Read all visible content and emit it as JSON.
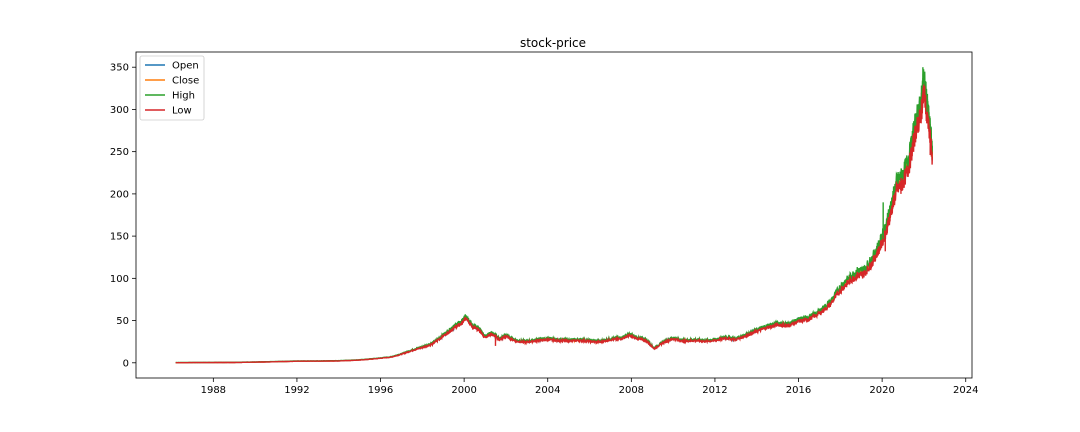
{
  "chart_data": {
    "type": "line",
    "title": "stock-price",
    "xlabel": "",
    "ylabel": "",
    "xlim": [
      1984.3,
      2024.3
    ],
    "ylim": [
      -18,
      368
    ],
    "x_ticks": [
      1988,
      1992,
      1996,
      2000,
      2004,
      2008,
      2012,
      2016,
      2020,
      2024
    ],
    "y_ticks": [
      0,
      50,
      100,
      150,
      200,
      250,
      300,
      350
    ],
    "grid": false,
    "legend_position": "top-left",
    "series": [
      {
        "name": "Open",
        "color": "#1f77b4"
      },
      {
        "name": "Close",
        "color": "#ff7f0e"
      },
      {
        "name": "High",
        "color": "#2ca02c"
      },
      {
        "name": "Low",
        "color": "#d62728"
      }
    ],
    "x": [
      1986.2,
      1987.0,
      1988.0,
      1989.0,
      1990.0,
      1991.0,
      1992.0,
      1993.0,
      1994.0,
      1995.0,
      1995.8,
      1996.5,
      1997.0,
      1997.5,
      1998.0,
      1998.5,
      1999.0,
      1999.5,
      1999.9,
      2000.1,
      2000.4,
      2000.7,
      2001.0,
      2001.3,
      2001.7,
      2002.0,
      2002.5,
      2003.0,
      2003.5,
      2004.0,
      2004.5,
      2005.0,
      2005.5,
      2006.0,
      2006.5,
      2007.0,
      2007.5,
      2007.9,
      2008.3,
      2008.7,
      2009.1,
      2009.5,
      2010.0,
      2010.5,
      2011.0,
      2011.5,
      2012.0,
      2012.5,
      2013.0,
      2013.5,
      2014.0,
      2014.5,
      2015.0,
      2015.5,
      2016.0,
      2016.5,
      2017.0,
      2017.5,
      2018.0,
      2018.4,
      2018.8,
      2019.1,
      2019.5,
      2019.9,
      2020.2,
      2020.4,
      2020.7,
      2021.0,
      2021.3,
      2021.6,
      2021.85,
      2022.0,
      2022.2,
      2022.4
    ],
    "close": [
      0.1,
      0.2,
      0.3,
      0.4,
      0.8,
      1.3,
      1.9,
      2.0,
      2.3,
      3.3,
      5.0,
      6.8,
      10.3,
      14.8,
      18.5,
      23.0,
      32.5,
      42.0,
      48.0,
      55.0,
      43.0,
      40.0,
      31.0,
      35.0,
      28.0,
      32.0,
      26.0,
      25.0,
      27.0,
      28.0,
      27.0,
      26.5,
      27.0,
      26.0,
      25.0,
      28.0,
      29.0,
      33.0,
      29.0,
      27.0,
      17.0,
      24.0,
      29.0,
      26.0,
      27.0,
      26.0,
      27.0,
      30.0,
      28.0,
      33.0,
      38.0,
      43.0,
      46.0,
      45.0,
      50.0,
      53.0,
      60.0,
      70.0,
      88.0,
      98.0,
      106.0,
      107.0,
      120.0,
      140.0,
      160.0,
      180.0,
      210.0,
      218.0,
      240.0,
      280.0,
      300.0,
      330.0,
      290.0,
      250.0
    ],
    "high_spikes": [
      [
        2020.05,
        190
      ],
      [
        2020.75,
        222
      ],
      [
        2021.1,
        232
      ],
      [
        2021.95,
        350
      ],
      [
        2022.15,
        316
      ]
    ],
    "low_dips": [
      [
        2001.5,
        20
      ],
      [
        2009.1,
        16
      ],
      [
        2020.15,
        132
      ],
      [
        2020.9,
        200
      ],
      [
        2022.3,
        246
      ]
    ]
  }
}
